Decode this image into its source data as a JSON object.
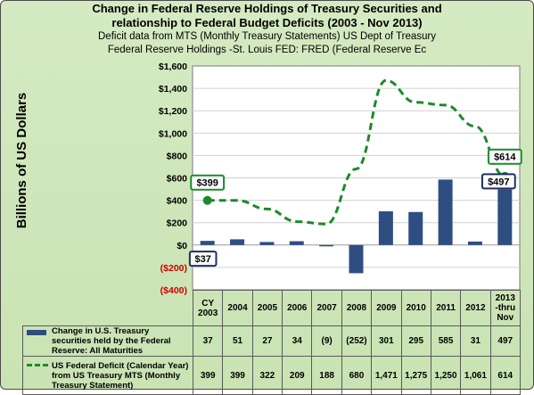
{
  "chart_data": {
    "type": "bar+line",
    "title_line1": "Change in Federal Reserve Holdings of Treasury Securities and",
    "title_line2": "relationship to Federal Budget Deficits (2003 - Nov 2013)",
    "subtitle_line1": "Deficit data from MTS (Monthly Treasury Statements) US Dept of Treasury",
    "subtitle_line2": "Federal Reserve Holdings -St. Louis FED: FRED (Federal Reserve Ec",
    "ylabel": "Billions of US Dollars",
    "ylim": [
      -400,
      1600
    ],
    "y_ticks": [
      "$1,600",
      "$1,400",
      "$1,200",
      "$1,000",
      "$800",
      "$600",
      "$400",
      "$200",
      "$0",
      "($200)",
      "($400)"
    ],
    "categories": [
      "CY 2003",
      "2004",
      "2005",
      "2006",
      "2007",
      "2008",
      "2009",
      "2010",
      "2011",
      "2012",
      "2013 -thru Nov"
    ],
    "category_lines": [
      [
        "CY",
        "2003"
      ],
      [
        "2004"
      ],
      [
        "2005"
      ],
      [
        "2006"
      ],
      [
        "2007"
      ],
      [
        "2008"
      ],
      [
        "2009"
      ],
      [
        "2010"
      ],
      [
        "2011"
      ],
      [
        "2012"
      ],
      [
        "2013",
        "-thru",
        "Nov"
      ]
    ],
    "series": [
      {
        "name": "Change in U.S. Treasury securities held by the Federal Reserve: All Maturities",
        "kind": "bar",
        "color": "#2e4e82",
        "values": [
          37,
          51,
          27,
          34,
          -9,
          -252,
          301,
          295,
          585,
          31,
          497
        ],
        "display": [
          "37",
          "51",
          "27",
          "34",
          "(9)",
          "(252)",
          "301",
          "295",
          "585",
          "31",
          "497"
        ]
      },
      {
        "name": "US Federal Deficit (Calendar Year) from US Treasury MTS (Monthly Treasury Statement)",
        "kind": "line",
        "color": "#1d8a2a",
        "values": [
          399,
          399,
          322,
          209,
          188,
          680,
          1471,
          1275,
          1250,
          1061,
          614
        ],
        "display": [
          "399",
          "399",
          "322",
          "209",
          "188",
          "680",
          "1,471",
          "1,275",
          "1,250",
          "1,061",
          "614"
        ]
      }
    ],
    "callouts": {
      "deficit_start": "$399",
      "deficit_end": "$614",
      "holdings_start": "$37",
      "holdings_end": "$497"
    },
    "grid": true
  }
}
